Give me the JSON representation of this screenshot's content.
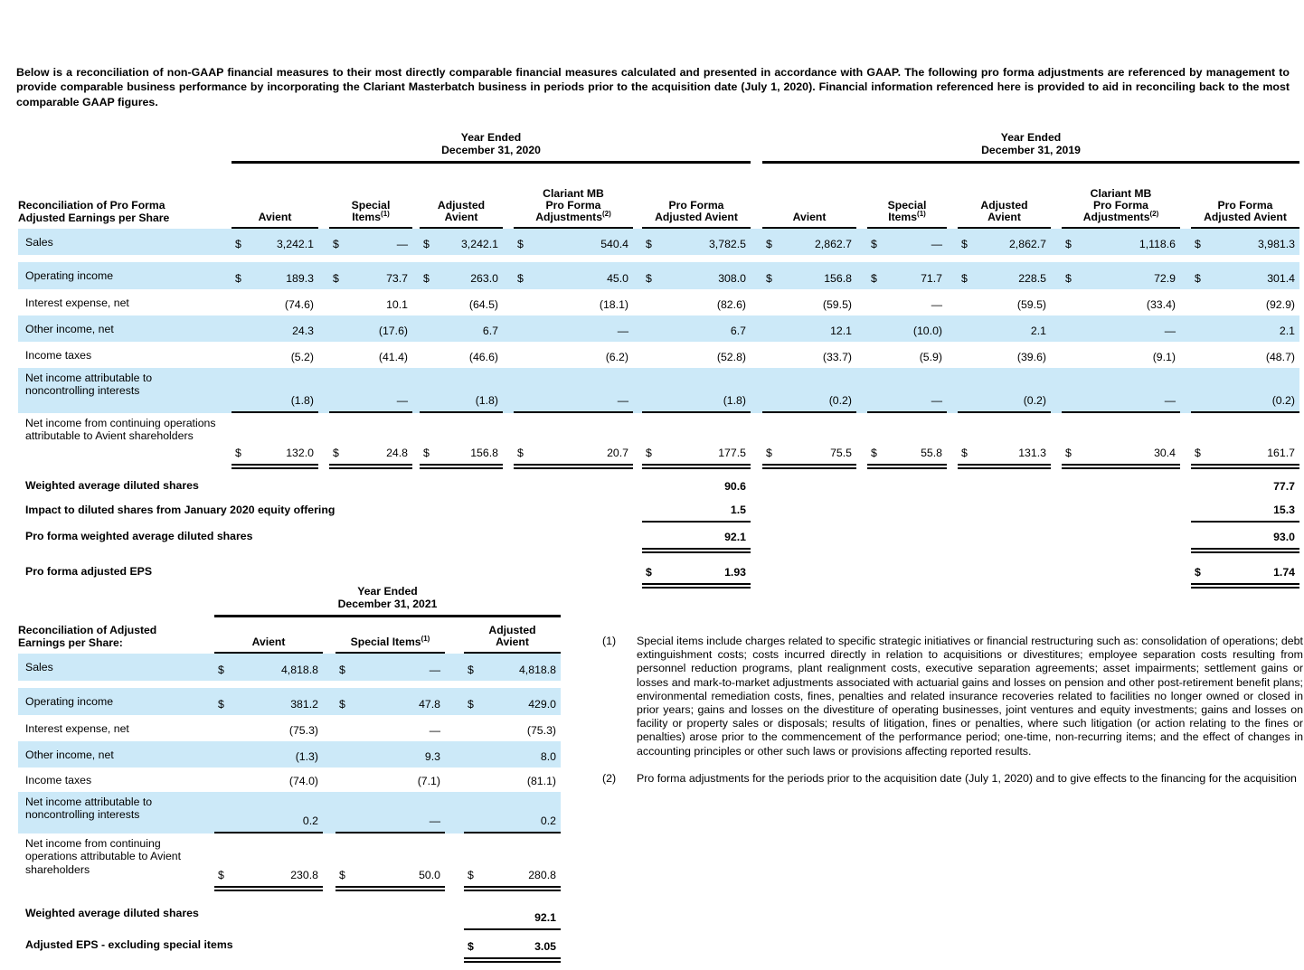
{
  "intro": "Below is a reconciliation of non-GAAP financial measures to their most directly comparable financial measures calculated and presented in accordance with GAAP. The following pro forma adjustments are referenced by management to provide comparable business performance by incorporating the Clariant Masterbatch business in periods prior to the acquisition date (July 1, 2020). Financial information referenced here is provided to aid in reconciling back to the most comparable GAAP figures.",
  "currency_symbol": "$",
  "colors": {
    "stripe": "#cce9f8",
    "rule": "#000000"
  },
  "top_table": {
    "title_lines": [
      "Reconciliation of Pro Forma",
      "Adjusted Earnings per Share"
    ],
    "groups": [
      {
        "year_lines": [
          "Year Ended",
          "December 31, 2020"
        ],
        "columns": [
          {
            "lines": [
              "Avient"
            ],
            "sup": ""
          },
          {
            "lines": [
              "Special",
              "Items"
            ],
            "sup": "(1)"
          },
          {
            "lines": [
              "Adjusted",
              "Avient"
            ],
            "sup": ""
          },
          {
            "lines": [
              "Clariant MB",
              "Pro Forma",
              "Adjustments"
            ],
            "sup": "(2)"
          },
          {
            "lines": [
              "Pro Forma",
              "Adjusted Avient"
            ],
            "sup": ""
          }
        ]
      },
      {
        "year_lines": [
          "Year Ended",
          "December 31, 2019"
        ],
        "columns": [
          {
            "lines": [
              "Avient"
            ],
            "sup": ""
          },
          {
            "lines": [
              "Special",
              "Items"
            ],
            "sup": "(1)"
          },
          {
            "lines": [
              "Adjusted",
              "Avient"
            ],
            "sup": ""
          },
          {
            "lines": [
              "Clariant MB",
              "Pro Forma",
              "Adjustments"
            ],
            "sup": "(2)"
          },
          {
            "lines": [
              "Pro Forma",
              "Adjusted Avient"
            ],
            "sup": ""
          }
        ]
      }
    ],
    "rows": [
      {
        "label_lines": [
          "Sales"
        ],
        "stripe": true,
        "dollar": true,
        "underline": "none",
        "spacer_after": true,
        "values": [
          [
            "3,242.1",
            "—",
            "3,242.1",
            "540.4",
            "3,782.5"
          ],
          [
            "2,862.7",
            "—",
            "2,862.7",
            "1,118.6",
            "3,981.3"
          ]
        ]
      },
      {
        "label_lines": [
          "Operating income"
        ],
        "stripe": true,
        "dollar": true,
        "underline": "none",
        "values": [
          [
            "189.3",
            "73.7",
            "263.0",
            "45.0",
            "308.0"
          ],
          [
            "156.8",
            "71.7",
            "228.5",
            "72.9",
            "301.4"
          ]
        ]
      },
      {
        "label_lines": [
          "Interest expense, net"
        ],
        "stripe": false,
        "dollar": false,
        "underline": "none",
        "values": [
          [
            "(74.6)",
            "10.1",
            "(64.5)",
            "(18.1)",
            "(82.6)"
          ],
          [
            "(59.5)",
            "—",
            "(59.5)",
            "(33.4)",
            "(92.9)"
          ]
        ]
      },
      {
        "label_lines": [
          "Other income, net"
        ],
        "stripe": true,
        "dollar": false,
        "underline": "none",
        "values": [
          [
            "24.3",
            "(17.6)",
            "6.7",
            "—",
            "6.7"
          ],
          [
            "12.1",
            "(10.0)",
            "2.1",
            "—",
            "2.1"
          ]
        ]
      },
      {
        "label_lines": [
          "Income taxes"
        ],
        "stripe": false,
        "dollar": false,
        "underline": "none",
        "values": [
          [
            "(5.2)",
            "(41.4)",
            "(46.6)",
            "(6.2)",
            "(52.8)"
          ],
          [
            "(33.7)",
            "(5.9)",
            "(39.6)",
            "(9.1)",
            "(48.7)"
          ]
        ]
      },
      {
        "label_lines": [
          "Net income attributable to",
          "noncontrolling interests"
        ],
        "stripe": true,
        "dollar": false,
        "underline": "single",
        "values": [
          [
            "(1.8)",
            "—",
            "(1.8)",
            "—",
            "(1.8)"
          ],
          [
            "(0.2)",
            "—",
            "(0.2)",
            "—",
            "(0.2)"
          ]
        ]
      },
      {
        "label_lines": [
          "Net income from continuing operations",
          "attributable to Avient shareholders"
        ],
        "stripe": false,
        "dollar": true,
        "underline": "double",
        "values": [
          [
            "132.0",
            "24.8",
            "156.8",
            "20.7",
            "177.5"
          ],
          [
            "75.5",
            "55.8",
            "131.3",
            "30.4",
            "161.7"
          ]
        ]
      }
    ],
    "share_rows": [
      {
        "label": "Weighted average diluted shares",
        "dollar": false,
        "underline": "none",
        "values": [
          "90.6",
          "77.7"
        ]
      },
      {
        "label": "Impact to diluted shares from January 2020 equity offering",
        "dollar": false,
        "underline": "single",
        "values": [
          "1.5",
          "15.3"
        ]
      },
      {
        "label": "Pro forma weighted average diluted shares",
        "dollar": false,
        "underline": "double",
        "values": [
          "92.1",
          "93.0"
        ]
      },
      {
        "label": "Pro forma adjusted EPS",
        "dollar": true,
        "underline": "double",
        "values": [
          "1.93",
          "1.74"
        ]
      }
    ]
  },
  "bottom_table": {
    "title_lines": [
      "Reconciliation of Adjusted",
      "Earnings per Share:"
    ],
    "groups": [
      {
        "year_lines": [
          "Year Ended",
          "December 31, 2021"
        ],
        "columns": [
          {
            "lines": [
              "Avient"
            ],
            "sup": ""
          },
          {
            "lines": [
              "Special Items"
            ],
            "sup": "(1)"
          },
          {
            "lines": [
              "Adjusted",
              "Avient"
            ],
            "sup": ""
          }
        ]
      }
    ],
    "rows": [
      {
        "label_lines": [
          "Sales"
        ],
        "stripe": true,
        "dollar": true,
        "underline": "none",
        "spacer_after": true,
        "values": [
          [
            "4,818.8",
            "—",
            "4,818.8"
          ]
        ]
      },
      {
        "label_lines": [
          "Operating income"
        ],
        "stripe": true,
        "dollar": true,
        "underline": "none",
        "values": [
          [
            "381.2",
            "47.8",
            "429.0"
          ]
        ]
      },
      {
        "label_lines": [
          "Interest expense, net"
        ],
        "stripe": false,
        "dollar": false,
        "underline": "none",
        "values": [
          [
            "(75.3)",
            "—",
            "(75.3)"
          ]
        ]
      },
      {
        "label_lines": [
          "Other income, net"
        ],
        "stripe": true,
        "dollar": false,
        "underline": "none",
        "values": [
          [
            "(1.3)",
            "9.3",
            "8.0"
          ]
        ]
      },
      {
        "label_lines": [
          "Income taxes"
        ],
        "stripe": false,
        "dollar": false,
        "underline": "none",
        "values": [
          [
            "(74.0)",
            "(7.1)",
            "(81.1)"
          ]
        ]
      },
      {
        "label_lines": [
          "Net income attributable to",
          "noncontrolling interests"
        ],
        "stripe": true,
        "dollar": false,
        "underline": "single",
        "values": [
          [
            "0.2",
            "—",
            "0.2"
          ]
        ]
      },
      {
        "label_lines": [
          "Net income from continuing",
          "operations attributable to Avient",
          "shareholders"
        ],
        "stripe": false,
        "dollar": true,
        "underline": "double",
        "values": [
          [
            "230.8",
            "50.0",
            "280.8"
          ]
        ]
      }
    ],
    "share_rows": [
      {
        "label": "Weighted average diluted shares",
        "dollar": false,
        "underline": "single",
        "values": [
          "92.1"
        ]
      },
      {
        "label": "Adjusted EPS - excluding special items",
        "dollar": true,
        "underline": "double",
        "values": [
          "3.05"
        ]
      }
    ]
  },
  "footnotes": [
    {
      "marker": "(1)",
      "text": "Special items include charges related to specific strategic initiatives or financial restructuring such as: consolidation of operations; debt extinguishment costs; costs incurred directly in relation to acquisitions or divestitures; employee separation costs resulting from personnel reduction programs, plant realignment costs, executive separation agreements; asset impairments; settlement gains or losses and mark-to-market adjustments associated with actuarial gains and losses on pension and other post-retirement benefit plans; environmental remediation costs, fines, penalties and related insurance recoveries related to facilities no longer owned or closed in prior years; gains and losses on the divestiture of operating businesses, joint ventures and equity investments; gains and losses on facility or property sales or disposals; results of litigation, fines or penalties, where such litigation (or action relating to the fines or penalties) arose prior to the commencement of the performance period; one-time, non-recurring items; and the effect of changes in accounting principles or other such laws or provisions affecting reported results."
    },
    {
      "marker": "(2)",
      "text": "Pro forma adjustments for the periods prior to the acquisition date (July 1, 2020) and to give effects to the financing for the acquisition"
    }
  ]
}
